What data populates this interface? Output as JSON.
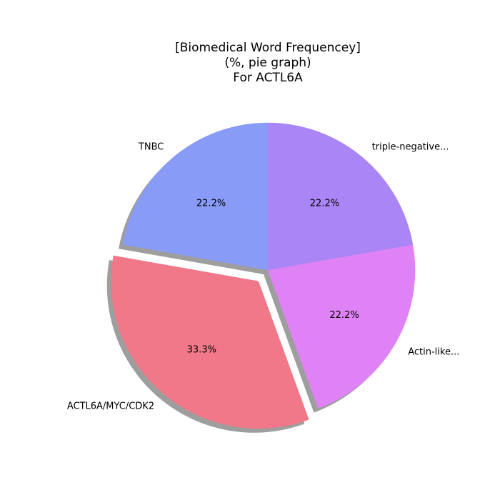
{
  "chart_data": {
    "type": "pie",
    "title_lines": [
      "[Biomedical Word Frequencey]",
      "(%, pie graph)",
      "For ACTL6A"
    ],
    "slices": [
      {
        "label": "TNBC",
        "value": 22.2,
        "pct_label": "22.2%",
        "color": "#889cf7",
        "exploded": false
      },
      {
        "label": "ACTL6A/MYC/CDK2",
        "value": 33.3,
        "pct_label": "33.3%",
        "color": "#f07888",
        "exploded": true
      },
      {
        "label": "Actin-like...",
        "value": 22.2,
        "pct_label": "22.2%",
        "color": "#df82f5",
        "exploded": false
      },
      {
        "label": "triple-negative...",
        "value": 22.2,
        "pct_label": "22.2%",
        "color": "#a985f5",
        "exploded": false
      }
    ],
    "start_angle_deg": 90,
    "direction": "counterclockwise",
    "shadow": true
  }
}
